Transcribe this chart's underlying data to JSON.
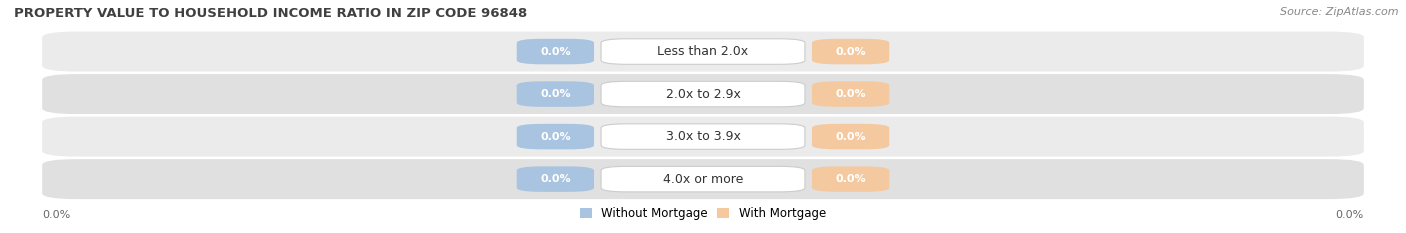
{
  "title": "PROPERTY VALUE TO HOUSEHOLD INCOME RATIO IN ZIP CODE 96848",
  "source": "Source: ZipAtlas.com",
  "categories": [
    "Less than 2.0x",
    "2.0x to 2.9x",
    "3.0x to 3.9x",
    "4.0x or more"
  ],
  "without_mortgage_color": "#a8c4e0",
  "with_mortgage_color": "#f5c9a0",
  "row_bg_color_odd": "#ebebeb",
  "row_bg_color_even": "#e0e0e0",
  "title_color": "#404040",
  "title_fontsize": 9.5,
  "source_fontsize": 8,
  "legend_without": "Without Mortgage",
  "legend_with": "With Mortgage",
  "bar_value_label": "0.0%",
  "category_fontsize": 9,
  "value_fontsize": 8,
  "axis_label_left": "0.0%",
  "axis_label_right": "0.0%"
}
